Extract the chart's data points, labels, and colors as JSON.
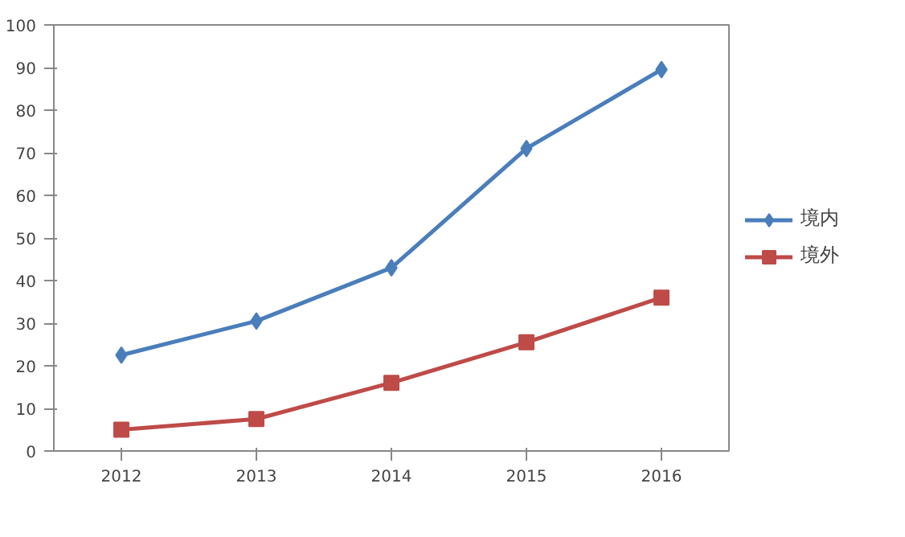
{
  "chart_data": {
    "type": "line",
    "categories": [
      "2012",
      "2013",
      "2014",
      "2015",
      "2016"
    ],
    "series": [
      {
        "name": "境内",
        "color": "#4a7ebb",
        "marker": "diamond",
        "values": [
          22.5,
          30.5,
          43,
          71,
          89.5
        ]
      },
      {
        "name": "境外",
        "color": "#be4b48",
        "marker": "square",
        "values": [
          5,
          7.5,
          16,
          25.5,
          36
        ]
      }
    ],
    "ylim": [
      0,
      100
    ],
    "yticks": [
      0,
      10,
      20,
      30,
      40,
      50,
      60,
      70,
      80,
      90,
      100
    ],
    "grid": false,
    "legend": "right",
    "line_style": "solid"
  }
}
